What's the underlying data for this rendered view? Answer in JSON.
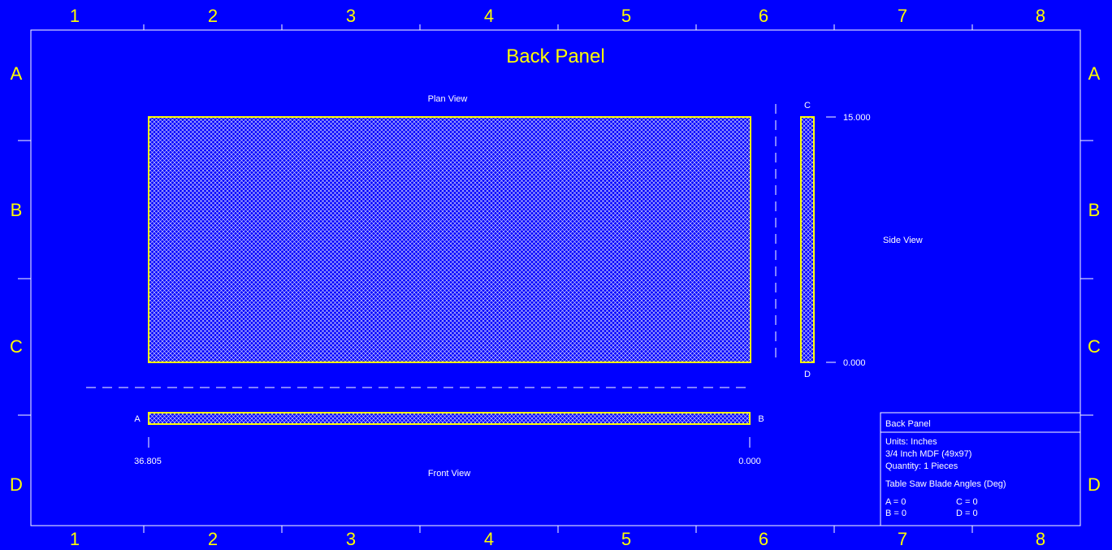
{
  "sheet": {
    "title": "Back Panel",
    "zone_columns": [
      "1",
      "2",
      "3",
      "4",
      "5",
      "6",
      "7",
      "8"
    ],
    "zone_rows": [
      "A",
      "B",
      "C",
      "D"
    ]
  },
  "views": {
    "plan_label": "Plan View",
    "side_label": "Side View",
    "front_label": "Front View"
  },
  "side_view": {
    "top_edge_label": "C",
    "bottom_edge_label": "D",
    "top_dim": "15.000",
    "bottom_dim": "0.000"
  },
  "front_view": {
    "left_edge_label": "A",
    "right_edge_label": "B",
    "left_dim": "36.805",
    "right_dim": "0.000"
  },
  "title_block": {
    "name": "Back Panel",
    "units": "Units: Inches",
    "material": "3/4 Inch MDF (49x97)",
    "quantity": "Quantity: 1 Pieces",
    "angles_heading": "Table Saw Blade Angles (Deg)",
    "angle_a": "A = 0",
    "angle_b": "B = 0",
    "angle_c": "C = 0",
    "angle_d": "D = 0"
  },
  "colors": {
    "background": "#0000ff",
    "outline": "#ffff00",
    "text": "#ffffff",
    "zone_text": "#ffff00",
    "hatch": "#ffffff"
  }
}
